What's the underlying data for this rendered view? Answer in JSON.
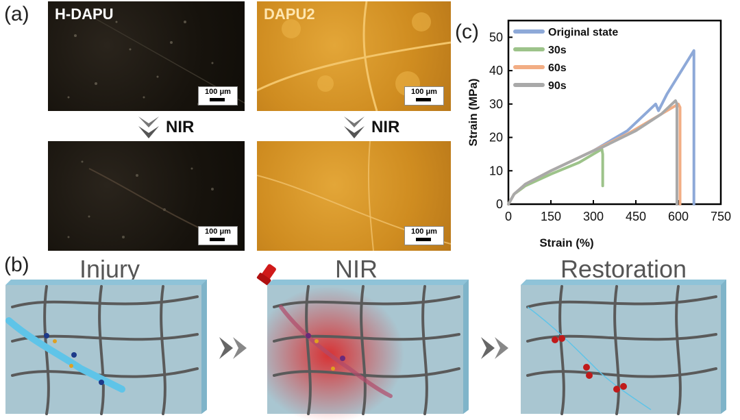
{
  "panel_a": {
    "letter": "(a)",
    "left_label": "H-DAPU",
    "right_label": "DAPU2",
    "step_label": "NIR",
    "scale_label": "100 μm"
  },
  "panel_b": {
    "letter": "(b)",
    "stages": [
      "Injury",
      "NIR",
      "Restoration"
    ],
    "colors": {
      "block_face": "#a9c6d1",
      "block_edge": "#8fc3d8",
      "crack": "#5fc4e8",
      "heat": "#e01818",
      "chain": "#5a5a5a"
    }
  },
  "panel_c": {
    "letter": "(c)",
    "chart_data": {
      "type": "line",
      "xlabel": "Strain (%)",
      "ylabel": "Strain (MPa)",
      "xlim": [
        0,
        750
      ],
      "ylim": [
        0,
        55
      ],
      "xticks": [
        0,
        150,
        300,
        450,
        600,
        750
      ],
      "yticks": [
        0,
        10,
        20,
        30,
        40,
        50
      ],
      "grid": false,
      "legend_position": "top-left",
      "series": [
        {
          "name": "Original state",
          "color": "#8ea9d8",
          "x": [
            0,
            20,
            60,
            150,
            300,
            420,
            520,
            530,
            560,
            655,
            655
          ],
          "y": [
            0,
            3,
            6,
            10,
            16,
            22,
            30,
            28,
            33,
            46,
            0
          ]
        },
        {
          "name": "30s",
          "color": "#9dc38a",
          "x": [
            0,
            20,
            60,
            150,
            250,
            300,
            330,
            333,
            333
          ],
          "y": [
            0,
            3,
            5.5,
            9,
            12.5,
            15,
            16.5,
            15,
            5.5
          ]
        },
        {
          "name": "60s",
          "color": "#f2ad84",
          "x": [
            0,
            20,
            60,
            150,
            300,
            420,
            520,
            600,
            606,
            606
          ],
          "y": [
            0,
            3,
            6,
            10,
            16,
            21,
            26,
            30,
            29,
            0
          ]
        },
        {
          "name": "90s",
          "color": "#a9a9a9",
          "x": [
            0,
            20,
            60,
            150,
            300,
            330,
            450,
            540,
            590,
            595,
            595
          ],
          "y": [
            0,
            3,
            6,
            10,
            16,
            17,
            22,
            27,
            31,
            30,
            0
          ]
        }
      ]
    }
  }
}
